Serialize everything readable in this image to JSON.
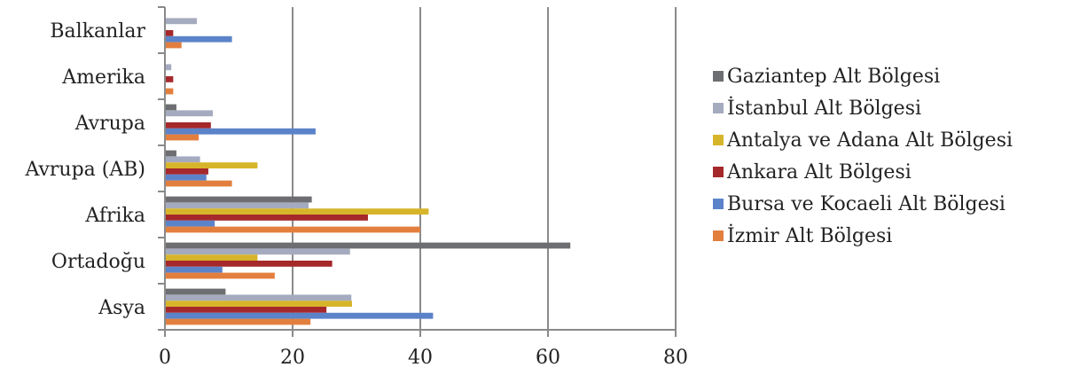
{
  "chart_data": {
    "type": "bar",
    "orientation": "horizontal",
    "categories": [
      "Asya",
      "Ortadoğu",
      "Afrika",
      "Avrupa (AB)",
      "Avrupa",
      "Amerika",
      "Balkanlar"
    ],
    "series": [
      {
        "name": "Gaziantep Alt Bölgesi",
        "color": "#6d6e71",
        "values": [
          9.5,
          63.5,
          23.0,
          1.8,
          1.8,
          0.0,
          0.0
        ]
      },
      {
        "name": "İstanbul Alt Bölgesi",
        "color": "#a5abbf",
        "values": [
          29.2,
          29.0,
          22.5,
          5.5,
          7.5,
          1.0,
          5.0
        ]
      },
      {
        "name": "Antalya ve Adana Alt Bölgesi",
        "color": "#d7b52b",
        "values": [
          29.3,
          14.5,
          41.3,
          14.5,
          0.0,
          0.0,
          0.0
        ]
      },
      {
        "name": "Ankara Alt Bölgesi",
        "color": "#a5282b",
        "values": [
          25.3,
          26.2,
          31.8,
          6.8,
          7.2,
          1.3,
          1.3
        ]
      },
      {
        "name": "Bursa ve Kocaeli Alt Bölgesi",
        "color": "#5b83c9",
        "values": [
          42.0,
          9.0,
          7.8,
          6.5,
          23.6,
          0.0,
          10.5
        ]
      },
      {
        "name": "İzmir Alt Bölgesi",
        "color": "#e37f3e",
        "values": [
          22.8,
          17.2,
          40.0,
          10.5,
          5.3,
          1.3,
          2.6
        ]
      }
    ],
    "xlim": [
      0,
      80
    ],
    "xticks": [
      "0",
      "20",
      "40",
      "60",
      "80"
    ],
    "grid": "vertical",
    "legend": "right"
  }
}
